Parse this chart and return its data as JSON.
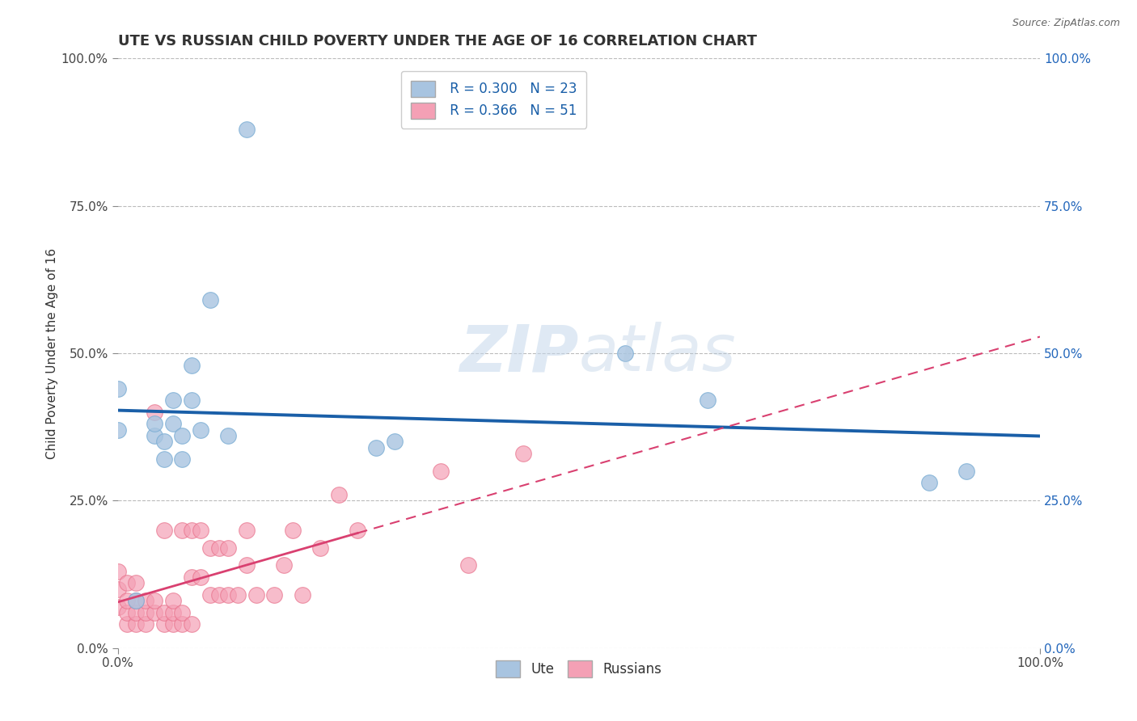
{
  "title": "UTE VS RUSSIAN CHILD POVERTY UNDER THE AGE OF 16 CORRELATION CHART",
  "source": "Source: ZipAtlas.com",
  "ylabel": "Child Poverty Under the Age of 16",
  "xlim": [
    0,
    1
  ],
  "ylim": [
    0,
    1
  ],
  "xtick_labels": [
    "0.0%",
    "100.0%"
  ],
  "ytick_labels": [
    "0.0%",
    "25.0%",
    "50.0%",
    "75.0%",
    "100.0%"
  ],
  "ytick_positions": [
    0.0,
    0.25,
    0.5,
    0.75,
    1.0
  ],
  "legend_r_ute": "R = 0.300",
  "legend_n_ute": "N = 23",
  "legend_r_rus": "R = 0.366",
  "legend_n_rus": "N = 51",
  "ute_color": "#a8c4e0",
  "ute_edge_color": "#7aadd4",
  "rus_color": "#f4a0b5",
  "rus_edge_color": "#e8708a",
  "ute_line_color": "#1a5fa8",
  "rus_line_color": "#d94070",
  "background_color": "#ffffff",
  "grid_color": "#bbbbbb",
  "watermark": "ZIPatlas",
  "ute_scatter_x": [
    0.0,
    0.0,
    0.02,
    0.04,
    0.05,
    0.06,
    0.07,
    0.07,
    0.08,
    0.09,
    0.1,
    0.28,
    0.3,
    0.55,
    0.64,
    0.88,
    0.92,
    0.04,
    0.06,
    0.12,
    0.14,
    0.08,
    0.05
  ],
  "ute_scatter_y": [
    0.44,
    0.37,
    0.08,
    0.36,
    0.32,
    0.38,
    0.32,
    0.36,
    0.42,
    0.37,
    0.59,
    0.34,
    0.35,
    0.5,
    0.42,
    0.28,
    0.3,
    0.38,
    0.42,
    0.36,
    0.88,
    0.48,
    0.35
  ],
  "rus_scatter_x": [
    0.0,
    0.0,
    0.0,
    0.01,
    0.01,
    0.01,
    0.01,
    0.02,
    0.02,
    0.02,
    0.02,
    0.03,
    0.03,
    0.03,
    0.04,
    0.04,
    0.04,
    0.05,
    0.05,
    0.05,
    0.06,
    0.06,
    0.06,
    0.07,
    0.07,
    0.07,
    0.08,
    0.08,
    0.08,
    0.09,
    0.09,
    0.1,
    0.1,
    0.11,
    0.11,
    0.12,
    0.12,
    0.13,
    0.14,
    0.14,
    0.15,
    0.17,
    0.18,
    0.19,
    0.2,
    0.22,
    0.24,
    0.26,
    0.35,
    0.38,
    0.44
  ],
  "rus_scatter_y": [
    0.07,
    0.1,
    0.13,
    0.04,
    0.06,
    0.08,
    0.11,
    0.04,
    0.06,
    0.08,
    0.11,
    0.04,
    0.06,
    0.08,
    0.06,
    0.08,
    0.4,
    0.04,
    0.06,
    0.2,
    0.04,
    0.06,
    0.08,
    0.04,
    0.06,
    0.2,
    0.04,
    0.12,
    0.2,
    0.12,
    0.2,
    0.09,
    0.17,
    0.09,
    0.17,
    0.09,
    0.17,
    0.09,
    0.14,
    0.2,
    0.09,
    0.09,
    0.14,
    0.2,
    0.09,
    0.17,
    0.26,
    0.2,
    0.3,
    0.14,
    0.33
  ],
  "title_fontsize": 13,
  "axis_label_fontsize": 11,
  "tick_fontsize": 11,
  "legend_fontsize": 12,
  "watermark_color": "#c5d8ec",
  "watermark_alpha": 0.55
}
